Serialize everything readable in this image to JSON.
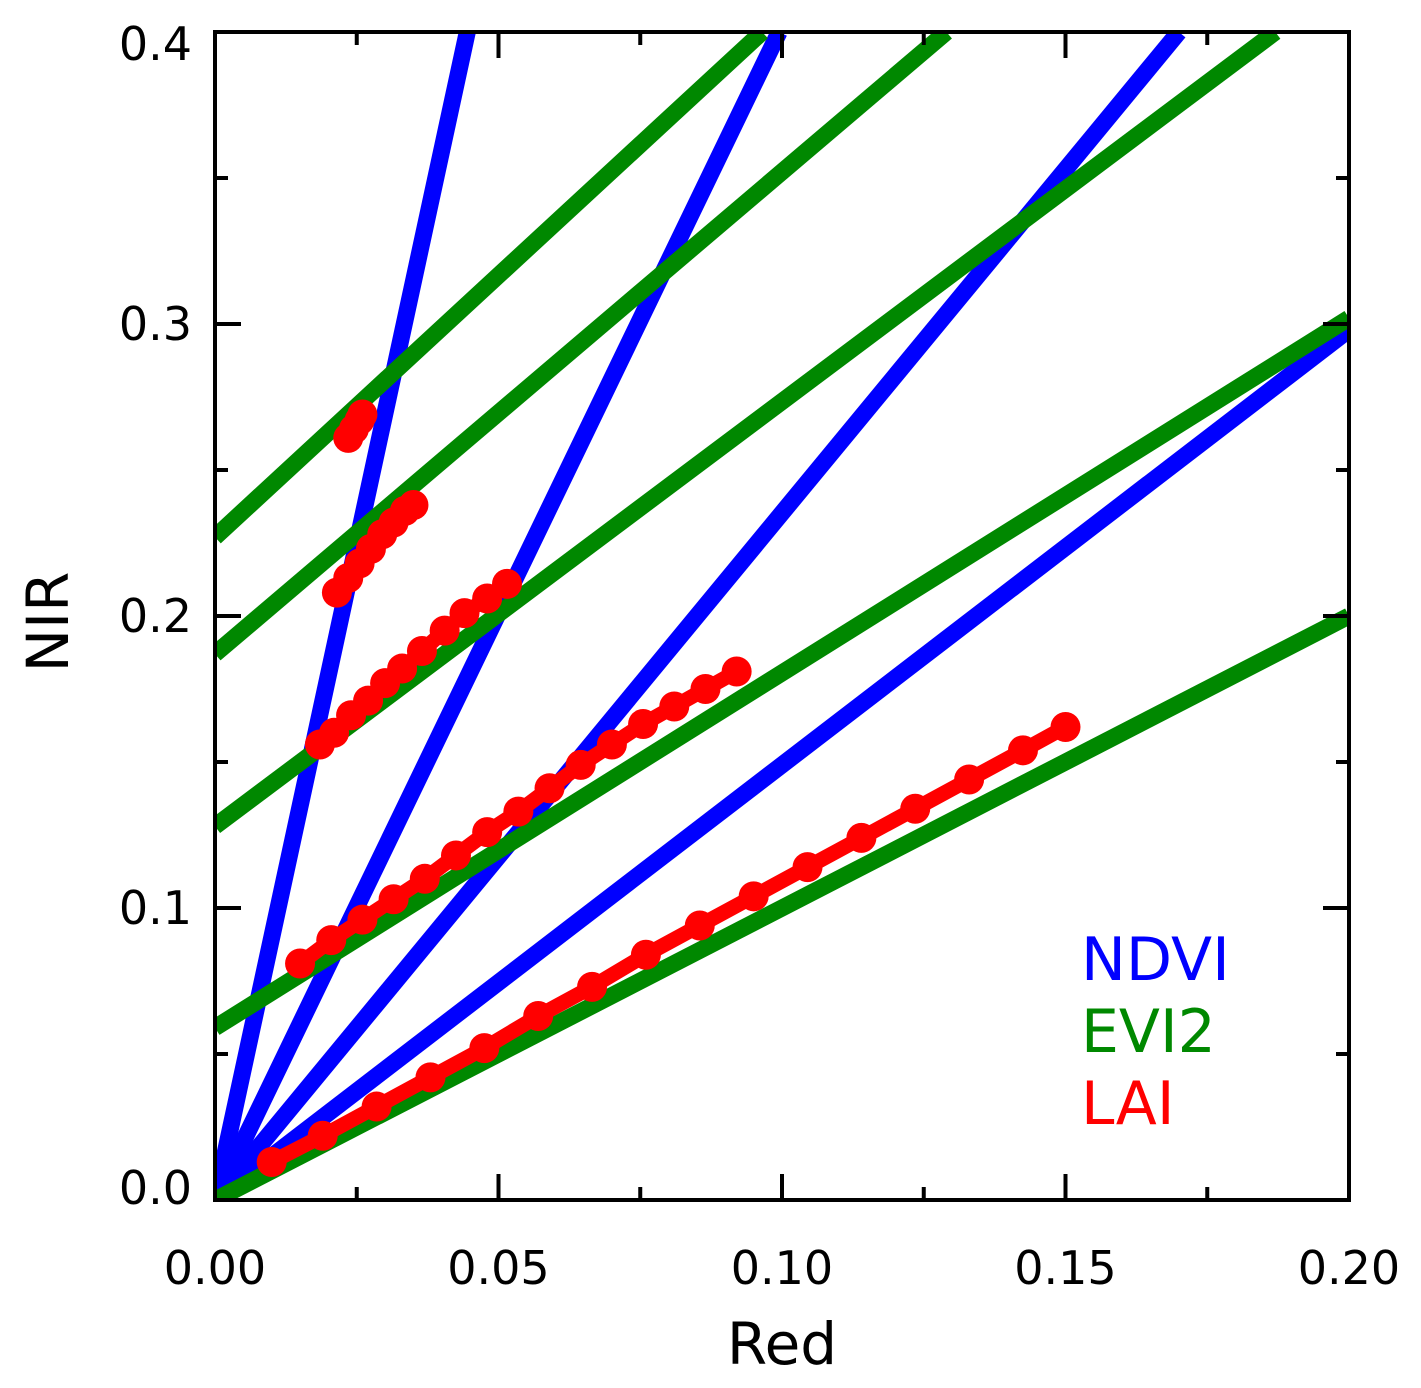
{
  "chart_data": {
    "type": "line",
    "title": "",
    "xlabel": "Red",
    "ylabel": "NIR",
    "xlim": [
      0.0,
      0.2
    ],
    "ylim": [
      0.0,
      0.4
    ],
    "x_ticks": [
      {
        "value": 0.0,
        "label": "0.00"
      },
      {
        "value": 0.05,
        "label": "0.05"
      },
      {
        "value": 0.1,
        "label": "0.10"
      },
      {
        "value": 0.15,
        "label": "0.15"
      },
      {
        "value": 0.2,
        "label": "0.20"
      }
    ],
    "y_ticks": [
      {
        "value": 0.0,
        "label": "0.0"
      },
      {
        "value": 0.1,
        "label": "0.1"
      },
      {
        "value": 0.2,
        "label": "0.2"
      },
      {
        "value": 0.3,
        "label": "0.3"
      },
      {
        "value": 0.4,
        "label": "0.4"
      }
    ],
    "x_minor_ticks": [
      0.025,
      0.075,
      0.125,
      0.175
    ],
    "y_minor_ticks": [
      0.05,
      0.15,
      0.25,
      0.35
    ],
    "legend": {
      "position": "lower-right",
      "entries": [
        {
          "name": "NDVI",
          "color": "#0000ff"
        },
        {
          "name": "EVI2",
          "color": "#008800"
        },
        {
          "name": "LAI",
          "color": "#ff0000"
        }
      ]
    },
    "series": [
      {
        "name": "NDVI",
        "color": "#0000ff",
        "kind": "lines",
        "lines": [
          {
            "x": [
              0.0,
              0.0445
            ],
            "y": [
              0.0,
              0.4
            ]
          },
          {
            "x": [
              0.0,
              0.0995
            ],
            "y": [
              0.0,
              0.4
            ]
          },
          {
            "x": [
              0.0,
              0.17
            ],
            "y": [
              0.0,
              0.4
            ]
          },
          {
            "x": [
              0.0,
              0.2
            ],
            "y": [
              0.0,
              0.298
            ]
          }
        ]
      },
      {
        "name": "EVI2",
        "color": "#008800",
        "kind": "lines",
        "lines": [
          {
            "x": [
              0.0,
              0.2
            ],
            "y": [
              0.0,
              0.2
            ]
          },
          {
            "x": [
              0.0,
              0.2
            ],
            "y": [
              0.059,
              0.302
            ]
          },
          {
            "x": [
              0.0,
              0.187
            ],
            "y": [
              0.128,
              0.4
            ]
          },
          {
            "x": [
              0.0,
              0.129
            ],
            "y": [
              0.187,
              0.4
            ]
          },
          {
            "x": [
              0.0,
              0.0965
            ],
            "y": [
              0.227,
              0.4
            ]
          }
        ]
      },
      {
        "name": "LAI",
        "color": "#ff0000",
        "kind": "markers",
        "groups": [
          {
            "x": [
              0.01,
              0.019,
              0.0285,
              0.038,
              0.0475,
              0.057,
              0.0665,
              0.076,
              0.0855,
              0.095,
              0.1045,
              0.114,
              0.1235,
              0.133,
              0.1425,
              0.15
            ],
            "y": [
              0.013,
              0.022,
              0.032,
              0.042,
              0.052,
              0.063,
              0.073,
              0.084,
              0.094,
              0.104,
              0.114,
              0.124,
              0.134,
              0.144,
              0.154,
              0.162
            ]
          },
          {
            "x": [
              0.015,
              0.0205,
              0.026,
              0.0315,
              0.037,
              0.0425,
              0.048,
              0.0535,
              0.059,
              0.0645,
              0.07,
              0.0755,
              0.081,
              0.0865,
              0.092
            ],
            "y": [
              0.081,
              0.089,
              0.096,
              0.103,
              0.11,
              0.118,
              0.126,
              0.133,
              0.141,
              0.149,
              0.156,
              0.163,
              0.169,
              0.175,
              0.181
            ]
          },
          {
            "x": [
              0.0185,
              0.021,
              0.024,
              0.027,
              0.03,
              0.033,
              0.0365,
              0.0405,
              0.044,
              0.048,
              0.0515
            ],
            "y": [
              0.156,
              0.16,
              0.166,
              0.171,
              0.177,
              0.182,
              0.188,
              0.195,
              0.201,
              0.206,
              0.211
            ]
          },
          {
            "x": [
              0.0215,
              0.0235,
              0.0255,
              0.0275,
              0.0295,
              0.0315,
              0.0335,
              0.035
            ],
            "y": [
              0.208,
              0.213,
              0.218,
              0.223,
              0.228,
              0.232,
              0.236,
              0.238
            ]
          },
          {
            "x": [
              0.0235,
              0.0245,
              0.0255,
              0.026
            ],
            "y": [
              0.261,
              0.264,
              0.267,
              0.269
            ]
          }
        ]
      }
    ]
  }
}
